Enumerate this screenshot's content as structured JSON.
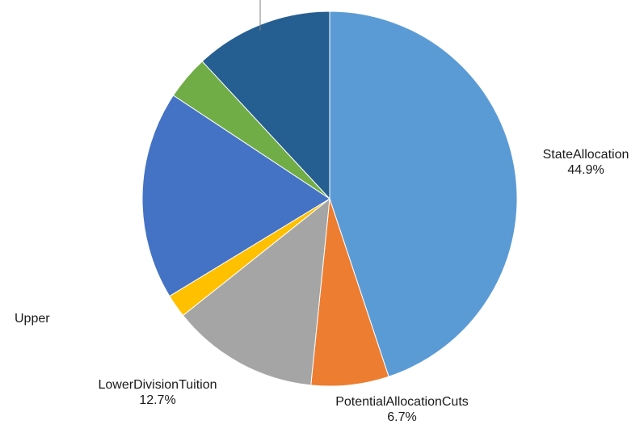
{
  "chart_data": {
    "type": "pie",
    "start_angle_deg": 0,
    "direction": "clockwise",
    "slices": [
      {
        "label": "State Allocation",
        "value": 44.9,
        "value_label": "44.9%",
        "color": "#5B9BD5"
      },
      {
        "label": "Potential Allocation Cuts",
        "value": 6.7,
        "value_label": "6.7%",
        "color": "#ED7D31"
      },
      {
        "label": "Lower Division Tuition",
        "value": 12.7,
        "value_label": "12.7%",
        "color": "#A5A5A5"
      },
      {
        "label": "",
        "value": 2.0,
        "value_label": "",
        "color": "#FFC000"
      },
      {
        "label": "Upper",
        "value": 18.0,
        "value_label": "",
        "color": "#4472C4"
      },
      {
        "label": "",
        "value": 3.8,
        "value_label": "",
        "color": "#70AD47"
      },
      {
        "label": "",
        "value": 11.9,
        "value_label": "",
        "color": "#255E91"
      }
    ]
  },
  "labels": {
    "state": {
      "name": "StateAllocation",
      "pct": "44.9%"
    },
    "cuts": {
      "name": "PotentialAllocationCuts",
      "pct": "6.7%"
    },
    "lower": {
      "name": "LowerDivisionTuition",
      "pct": "12.7%"
    },
    "upper": {
      "name": "Upper"
    }
  }
}
